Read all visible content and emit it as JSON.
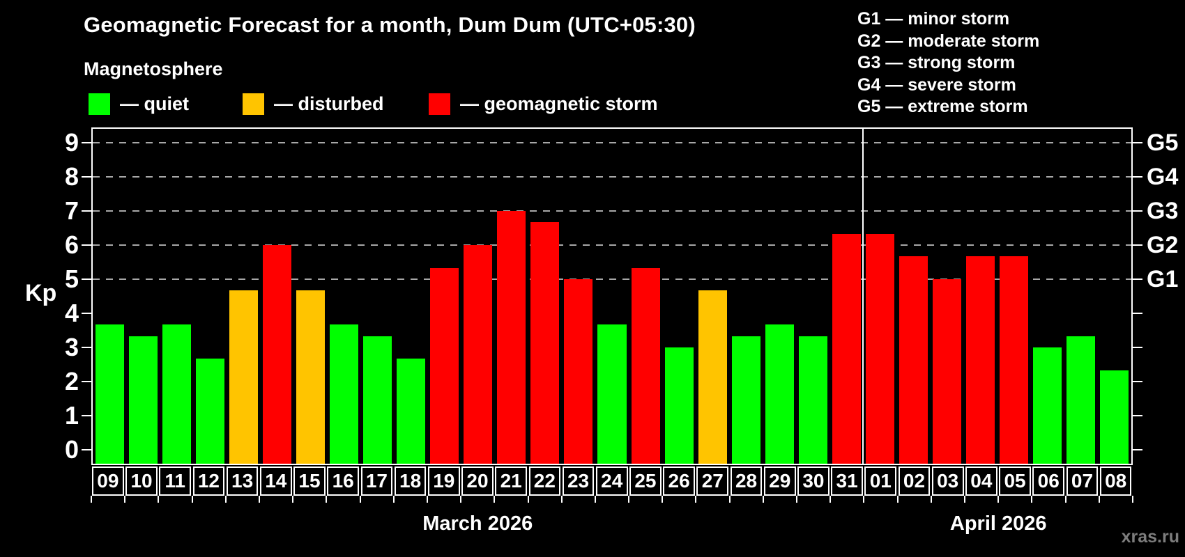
{
  "title": "Geomagnetic Forecast for a month, Dum Dum (UTC+05:30)",
  "subtitle": "Magnetosphere",
  "legend": {
    "items": [
      {
        "status": "quiet",
        "label": "— quiet",
        "color": "#00ff00"
      },
      {
        "status": "disturbed",
        "label": "— disturbed",
        "color": "#ffc400"
      },
      {
        "status": "storm",
        "label": "— geomagnetic storm",
        "color": "#ff0000"
      }
    ]
  },
  "g_scale_legend": [
    "G1 — minor storm",
    "G2 — moderate storm",
    "G3 — strong storm",
    "G4 — severe storm",
    "G5 — extreme storm"
  ],
  "y_axis": {
    "label": "Kp",
    "ticks": [
      0,
      1,
      2,
      3,
      4,
      5,
      6,
      7,
      8,
      9
    ]
  },
  "right_axis": {
    "labels": [
      {
        "kp": 5,
        "text": "G1"
      },
      {
        "kp": 6,
        "text": "G2"
      },
      {
        "kp": 7,
        "text": "G3"
      },
      {
        "kp": 8,
        "text": "G4"
      },
      {
        "kp": 9,
        "text": "G5"
      }
    ]
  },
  "months": [
    {
      "label": "March 2026",
      "start": 0,
      "count": 23
    },
    {
      "label": "April 2026",
      "start": 23,
      "count": 8
    }
  ],
  "watermark": "xras.ru",
  "chart_data": {
    "type": "bar",
    "title": "Geomagnetic Forecast for a month, Dum Dum (UTC+05:30)",
    "xlabel": "",
    "ylabel": "Kp",
    "ylim": [
      -0.4,
      9.4
    ],
    "grid": "dashed horizontal at Kp 5-9 only",
    "gridlines_kp": [
      5,
      6,
      7,
      8,
      9
    ],
    "legend_position": "top-left",
    "month_separator_after_index": 22,
    "categories": [
      "09",
      "10",
      "11",
      "12",
      "13",
      "14",
      "15",
      "16",
      "17",
      "18",
      "19",
      "20",
      "21",
      "22",
      "23",
      "24",
      "25",
      "26",
      "27",
      "28",
      "29",
      "30",
      "31",
      "01",
      "02",
      "03",
      "04",
      "05",
      "06",
      "07",
      "08"
    ],
    "values": [
      3.67,
      3.33,
      3.67,
      2.67,
      4.67,
      6.0,
      4.67,
      3.67,
      3.33,
      2.67,
      5.33,
      6.0,
      7.0,
      6.67,
      5.0,
      3.67,
      5.33,
      3.0,
      4.67,
      3.33,
      3.67,
      3.33,
      6.33,
      6.33,
      5.67,
      5.0,
      5.67,
      5.67,
      3.0,
      3.33,
      2.33
    ],
    "statuses": [
      "quiet",
      "quiet",
      "quiet",
      "quiet",
      "disturbed",
      "storm",
      "disturbed",
      "quiet",
      "quiet",
      "quiet",
      "storm",
      "storm",
      "storm",
      "storm",
      "storm",
      "quiet",
      "storm",
      "quiet",
      "disturbed",
      "quiet",
      "quiet",
      "quiet",
      "storm",
      "storm",
      "storm",
      "storm",
      "storm",
      "storm",
      "quiet",
      "quiet",
      "quiet"
    ]
  }
}
